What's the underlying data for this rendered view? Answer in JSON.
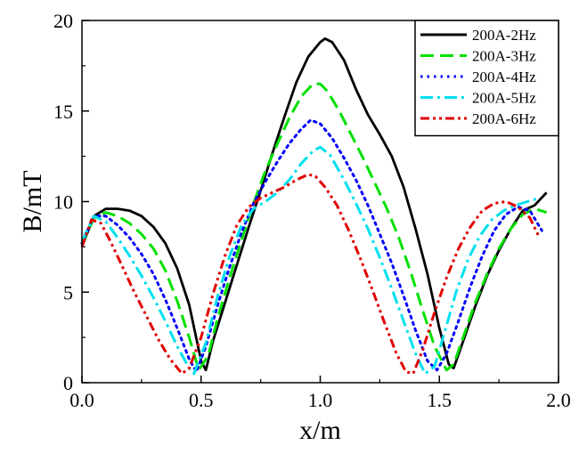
{
  "chart_data": {
    "type": "line",
    "title": "",
    "xlabel": "x/m",
    "ylabel": "B/mT",
    "xlim": [
      0.0,
      2.0
    ],
    "ylim": [
      0,
      20
    ],
    "x_ticks": [
      0.0,
      0.5,
      1.0,
      1.5,
      2.0
    ],
    "x_tick_labels": [
      "0.0",
      "0.5",
      "1.0",
      "1.5",
      "2.0"
    ],
    "y_ticks": [
      0,
      5,
      10,
      15,
      20
    ],
    "y_tick_labels": [
      "0",
      "5",
      "10",
      "15",
      "20"
    ],
    "grid": false,
    "legend_position": "top-right",
    "series": [
      {
        "name": "200A-2Hz",
        "color": "#000000",
        "dash": "solid",
        "points": [
          [
            0.0,
            7.5
          ],
          [
            0.05,
            9.2
          ],
          [
            0.1,
            9.6
          ],
          [
            0.15,
            9.6
          ],
          [
            0.2,
            9.5
          ],
          [
            0.25,
            9.2
          ],
          [
            0.3,
            8.6
          ],
          [
            0.35,
            7.7
          ],
          [
            0.4,
            6.3
          ],
          [
            0.45,
            4.3
          ],
          [
            0.5,
            1.2
          ],
          [
            0.52,
            0.7
          ],
          [
            0.55,
            2.3
          ],
          [
            0.6,
            4.4
          ],
          [
            0.65,
            6.5
          ],
          [
            0.7,
            8.6
          ],
          [
            0.75,
            10.6
          ],
          [
            0.8,
            12.7
          ],
          [
            0.85,
            14.7
          ],
          [
            0.9,
            16.6
          ],
          [
            0.95,
            18.0
          ],
          [
            1.0,
            18.8
          ],
          [
            1.02,
            19.0
          ],
          [
            1.05,
            18.8
          ],
          [
            1.1,
            17.8
          ],
          [
            1.15,
            16.2
          ],
          [
            1.2,
            14.8
          ],
          [
            1.25,
            13.7
          ],
          [
            1.3,
            12.5
          ],
          [
            1.35,
            10.8
          ],
          [
            1.4,
            8.5
          ],
          [
            1.45,
            6.0
          ],
          [
            1.5,
            3.0
          ],
          [
            1.54,
            1.0
          ],
          [
            1.56,
            0.8
          ],
          [
            1.6,
            2.3
          ],
          [
            1.65,
            4.2
          ],
          [
            1.7,
            5.9
          ],
          [
            1.75,
            7.3
          ],
          [
            1.8,
            8.5
          ],
          [
            1.85,
            9.5
          ],
          [
            1.9,
            9.8
          ],
          [
            1.95,
            10.5
          ]
        ]
      },
      {
        "name": "200A-3Hz",
        "color": "#00e000",
        "dash": "dash",
        "points": [
          [
            0.0,
            7.6
          ],
          [
            0.05,
            9.1
          ],
          [
            0.1,
            9.4
          ],
          [
            0.15,
            9.2
          ],
          [
            0.2,
            8.8
          ],
          [
            0.25,
            8.2
          ],
          [
            0.3,
            7.4
          ],
          [
            0.35,
            6.2
          ],
          [
            0.4,
            4.5
          ],
          [
            0.45,
            2.5
          ],
          [
            0.49,
            0.7
          ],
          [
            0.53,
            1.5
          ],
          [
            0.57,
            3.6
          ],
          [
            0.62,
            5.8
          ],
          [
            0.67,
            7.9
          ],
          [
            0.72,
            9.9
          ],
          [
            0.77,
            11.7
          ],
          [
            0.82,
            13.2
          ],
          [
            0.87,
            14.6
          ],
          [
            0.92,
            15.8
          ],
          [
            0.97,
            16.5
          ],
          [
            1.0,
            16.5
          ],
          [
            1.03,
            16.1
          ],
          [
            1.08,
            15.0
          ],
          [
            1.13,
            13.7
          ],
          [
            1.18,
            12.4
          ],
          [
            1.23,
            11.0
          ],
          [
            1.28,
            9.6
          ],
          [
            1.33,
            8.0
          ],
          [
            1.38,
            6.1
          ],
          [
            1.43,
            4.0
          ],
          [
            1.48,
            2.0
          ],
          [
            1.53,
            0.7
          ],
          [
            1.56,
            1.0
          ],
          [
            1.6,
            2.5
          ],
          [
            1.65,
            4.4
          ],
          [
            1.7,
            6.0
          ],
          [
            1.75,
            7.4
          ],
          [
            1.8,
            8.5
          ],
          [
            1.85,
            9.3
          ],
          [
            1.9,
            9.6
          ],
          [
            1.95,
            9.4
          ]
        ]
      },
      {
        "name": "200A-4Hz",
        "color": "#0000ff",
        "dash": "dot",
        "points": [
          [
            0.0,
            7.7
          ],
          [
            0.05,
            9.2
          ],
          [
            0.1,
            9.2
          ],
          [
            0.15,
            8.7
          ],
          [
            0.2,
            8.0
          ],
          [
            0.25,
            7.1
          ],
          [
            0.3,
            6.0
          ],
          [
            0.35,
            4.6
          ],
          [
            0.4,
            3.0
          ],
          [
            0.45,
            1.3
          ],
          [
            0.48,
            0.6
          ],
          [
            0.52,
            2.0
          ],
          [
            0.57,
            4.3
          ],
          [
            0.62,
            6.4
          ],
          [
            0.67,
            8.3
          ],
          [
            0.72,
            9.9
          ],
          [
            0.77,
            11.1
          ],
          [
            0.82,
            12.2
          ],
          [
            0.87,
            13.2
          ],
          [
            0.92,
            14.0
          ],
          [
            0.96,
            14.5
          ],
          [
            1.0,
            14.3
          ],
          [
            1.05,
            13.5
          ],
          [
            1.1,
            12.4
          ],
          [
            1.15,
            11.2
          ],
          [
            1.2,
            9.8
          ],
          [
            1.25,
            8.2
          ],
          [
            1.3,
            6.6
          ],
          [
            1.35,
            4.8
          ],
          [
            1.4,
            2.9
          ],
          [
            1.45,
            1.2
          ],
          [
            1.49,
            0.7
          ],
          [
            1.53,
            1.6
          ],
          [
            1.58,
            3.4
          ],
          [
            1.63,
            5.3
          ],
          [
            1.68,
            7.0
          ],
          [
            1.73,
            8.4
          ],
          [
            1.78,
            9.3
          ],
          [
            1.83,
            9.7
          ],
          [
            1.88,
            9.5
          ],
          [
            1.93,
            8.4
          ]
        ]
      },
      {
        "name": "200A-5Hz",
        "color": "#00e0f0",
        "dash": "dashdot",
        "points": [
          [
            0.0,
            7.8
          ],
          [
            0.05,
            9.2
          ],
          [
            0.1,
            8.9
          ],
          [
            0.15,
            8.0
          ],
          [
            0.2,
            7.0
          ],
          [
            0.25,
            5.9
          ],
          [
            0.3,
            4.7
          ],
          [
            0.35,
            3.4
          ],
          [
            0.4,
            2.0
          ],
          [
            0.45,
            0.8
          ],
          [
            0.47,
            0.5
          ],
          [
            0.52,
            2.2
          ],
          [
            0.57,
            4.8
          ],
          [
            0.62,
            7.0
          ],
          [
            0.67,
            8.7
          ],
          [
            0.72,
            9.6
          ],
          [
            0.77,
            10.0
          ],
          [
            0.82,
            10.5
          ],
          [
            0.87,
            11.2
          ],
          [
            0.92,
            12.1
          ],
          [
            0.97,
            12.8
          ],
          [
            1.0,
            13.0
          ],
          [
            1.04,
            12.6
          ],
          [
            1.1,
            11.2
          ],
          [
            1.15,
            9.9
          ],
          [
            1.2,
            8.5
          ],
          [
            1.25,
            6.9
          ],
          [
            1.3,
            5.2
          ],
          [
            1.35,
            3.4
          ],
          [
            1.4,
            1.6
          ],
          [
            1.44,
            0.5
          ],
          [
            1.48,
            0.9
          ],
          [
            1.52,
            2.7
          ],
          [
            1.57,
            5.0
          ],
          [
            1.62,
            6.8
          ],
          [
            1.67,
            8.1
          ],
          [
            1.72,
            9.0
          ],
          [
            1.77,
            9.5
          ],
          [
            1.82,
            9.8
          ],
          [
            1.87,
            10.0
          ],
          [
            1.92,
            10.2
          ]
        ]
      },
      {
        "name": "200A-6Hz",
        "color": "#e00000",
        "dash": "dashdotdot",
        "points": [
          [
            0.0,
            7.5
          ],
          [
            0.04,
            9.0
          ],
          [
            0.08,
            8.8
          ],
          [
            0.12,
            7.8
          ],
          [
            0.17,
            6.4
          ],
          [
            0.22,
            5.0
          ],
          [
            0.27,
            3.7
          ],
          [
            0.32,
            2.4
          ],
          [
            0.37,
            1.3
          ],
          [
            0.42,
            0.5
          ],
          [
            0.45,
            0.8
          ],
          [
            0.5,
            2.5
          ],
          [
            0.55,
            4.9
          ],
          [
            0.6,
            7.0
          ],
          [
            0.65,
            8.7
          ],
          [
            0.7,
            9.7
          ],
          [
            0.75,
            10.2
          ],
          [
            0.8,
            10.5
          ],
          [
            0.85,
            10.8
          ],
          [
            0.9,
            11.2
          ],
          [
            0.95,
            11.5
          ],
          [
            0.98,
            11.4
          ],
          [
            1.02,
            10.8
          ],
          [
            1.07,
            9.8
          ],
          [
            1.12,
            8.4
          ],
          [
            1.17,
            6.8
          ],
          [
            1.22,
            5.1
          ],
          [
            1.27,
            3.3
          ],
          [
            1.32,
            1.6
          ],
          [
            1.36,
            0.6
          ],
          [
            1.39,
            0.5
          ],
          [
            1.43,
            1.8
          ],
          [
            1.48,
            3.9
          ],
          [
            1.53,
            5.8
          ],
          [
            1.58,
            7.4
          ],
          [
            1.63,
            8.6
          ],
          [
            1.68,
            9.5
          ],
          [
            1.73,
            9.9
          ],
          [
            1.78,
            10.0
          ],
          [
            1.83,
            9.7
          ],
          [
            1.88,
            9.1
          ],
          [
            1.92,
            8.0
          ]
        ]
      }
    ]
  }
}
